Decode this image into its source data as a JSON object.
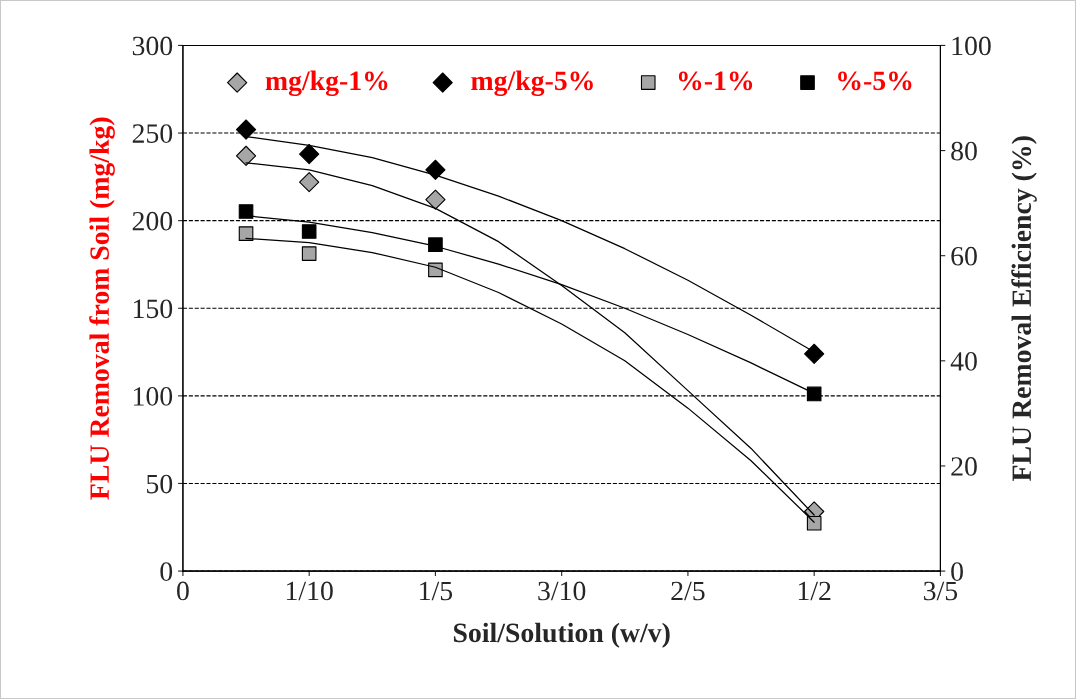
{
  "chart_data": {
    "type": "scatter",
    "xlabel": "Soil/Solution (w/v)",
    "ylabel": "FLU Removal from Soil (mg/kg)",
    "y2label": "FLU Removal Efficiency (%)",
    "x": [
      0.05,
      0.1,
      0.2,
      0.5
    ],
    "series": [
      {
        "name": "mg/kg-1%",
        "color": "#a6a6a6",
        "marker": "diamond",
        "values": [
          237,
          222,
          212,
          34
        ]
      },
      {
        "name": "mg/kg-5%",
        "color": "#000000",
        "marker": "diamond",
        "values": [
          252,
          238,
          229,
          124
        ]
      },
      {
        "name": "%-1%",
        "color": "#a6a6a6",
        "marker": "square",
        "axis": "y2",
        "values": [
          64.2,
          60.4,
          57.3,
          9.1
        ]
      },
      {
        "name": "%-5%",
        "color": "#000000",
        "marker": "square",
        "axis": "y2",
        "values": [
          68.4,
          64.6,
          62.1,
          33.7
        ]
      },
      {
        "type": "line",
        "color": "#000000",
        "x": [
          0.05,
          0.1,
          0.15,
          0.2,
          0.25,
          0.3,
          0.35,
          0.4,
          0.45,
          0.5
        ],
        "values": [
          233,
          229,
          220,
          207,
          188,
          163,
          136,
          103,
          70,
          32
        ]
      },
      {
        "type": "line",
        "color": "#000000",
        "x": [
          0.05,
          0.1,
          0.15,
          0.2,
          0.25,
          0.3,
          0.35,
          0.4,
          0.45,
          0.5
        ],
        "values": [
          248,
          243,
          236,
          226,
          214,
          200,
          184,
          166,
          146,
          125
        ]
      },
      {
        "type": "line",
        "color": "#000000",
        "axis": "y2",
        "x": [
          0.05,
          0.1,
          0.15,
          0.2,
          0.25,
          0.3,
          0.35,
          0.4,
          0.45,
          0.5
        ],
        "values": [
          63.3,
          62.5,
          60.6,
          57.8,
          53,
          47,
          40,
          31,
          21,
          9.3
        ]
      },
      {
        "type": "line",
        "color": "#000000",
        "axis": "y2",
        "x": [
          0.05,
          0.1,
          0.15,
          0.2,
          0.25,
          0.3,
          0.35,
          0.4,
          0.45,
          0.5
        ],
        "values": [
          67.6,
          66.4,
          64.4,
          61.8,
          58.4,
          54.5,
          50,
          45,
          39.6,
          33.8
        ]
      }
    ],
    "xlim": [
      0,
      0.6
    ],
    "xticks": [
      0,
      {
        "value": 0.1,
        "label": "1/10"
      },
      {
        "value": 0.2,
        "label": "1/5"
      },
      {
        "value": 0.3,
        "label": "3/10"
      },
      {
        "value": 0.4,
        "label": "2/5"
      },
      {
        "value": 0.5,
        "label": "1/2"
      },
      {
        "value": 0.6,
        "label": "3/5"
      }
    ],
    "ylim": [
      0,
      300
    ],
    "yticks": [
      0,
      50,
      100,
      150,
      200,
      250,
      300
    ],
    "y2lim": [
      0,
      100
    ],
    "y2ticks": [
      0,
      20,
      40,
      60,
      80,
      100
    ],
    "grid": "y",
    "legend": "top"
  }
}
